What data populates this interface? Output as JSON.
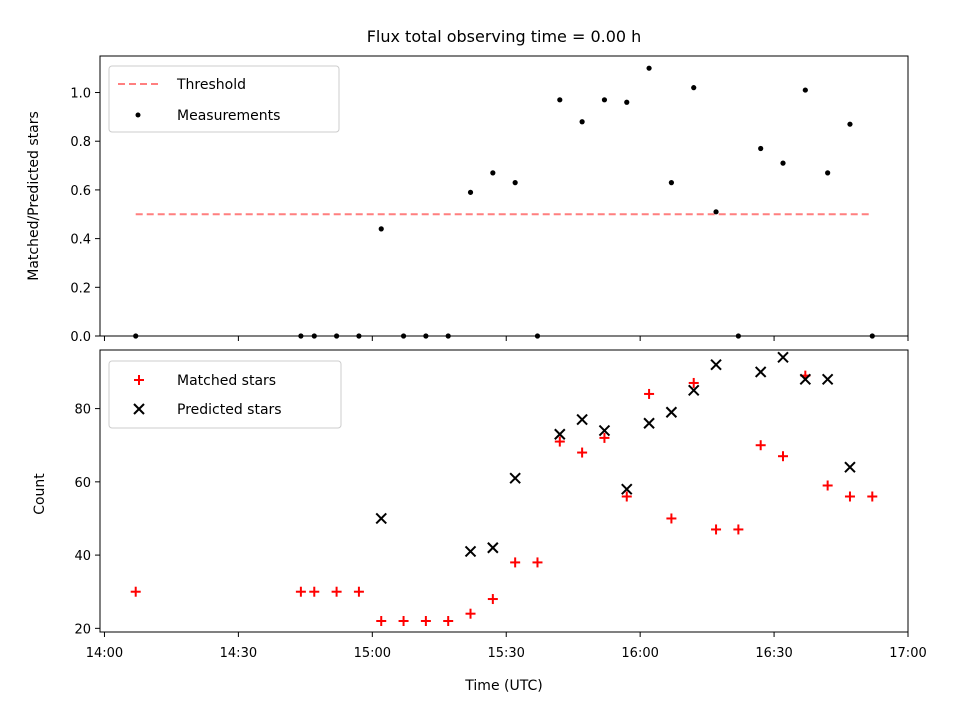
{
  "chart_data": [
    {
      "type": "scatter",
      "title": "Flux total observing time = 0.00 h",
      "xlabel": "",
      "ylabel": "Matched/Predicted stars",
      "xlim": [
        "13:59",
        "17:00"
      ],
      "ylim": [
        0,
        1.15
      ],
      "yticks": [
        "0.0",
        "0.2",
        "0.4",
        "0.6",
        "0.8",
        "1.0"
      ],
      "legend_position": "top-left",
      "grid": false,
      "series": [
        {
          "name": "Threshold",
          "kind": "dashed-line",
          "color": "#ff7f7f",
          "x": [
            "14:07",
            "16:52"
          ],
          "y": [
            0.5,
            0.5
          ]
        },
        {
          "name": "Measurements",
          "kind": "dot",
          "color": "#000000",
          "x": [
            "14:07",
            "14:44",
            "14:47",
            "14:52",
            "14:57",
            "15:02",
            "15:07",
            "15:12",
            "15:17",
            "15:22",
            "15:27",
            "15:32",
            "15:37",
            "15:42",
            "15:47",
            "15:52",
            "15:57",
            "16:02",
            "16:07",
            "16:12",
            "16:17",
            "16:22",
            "16:27",
            "16:32",
            "16:37",
            "16:42",
            "16:47",
            "16:52"
          ],
          "y": [
            0.0,
            0.0,
            0.0,
            0.0,
            0.0,
            0.44,
            0.0,
            0.0,
            0.0,
            0.59,
            0.67,
            0.63,
            0.0,
            0.97,
            0.88,
            0.97,
            0.96,
            1.1,
            0.63,
            1.02,
            0.51,
            0.0,
            0.77,
            0.71,
            1.01,
            0.67,
            0.87,
            0.0
          ]
        }
      ]
    },
    {
      "type": "scatter",
      "title": "",
      "xlabel": "Time (UTC)",
      "ylabel": "Count",
      "xlim": [
        "13:59",
        "17:00"
      ],
      "ylim": [
        19,
        96
      ],
      "xticks": [
        "14:00",
        "14:30",
        "15:00",
        "15:30",
        "16:00",
        "16:30",
        "17:00"
      ],
      "yticks": [
        "20",
        "40",
        "60",
        "80"
      ],
      "legend_position": "top-left",
      "grid": false,
      "series": [
        {
          "name": "Matched stars",
          "marker": "plus",
          "color": "#ff0000",
          "x": [
            "14:07",
            "14:44",
            "14:47",
            "14:52",
            "14:57",
            "15:02",
            "15:07",
            "15:12",
            "15:17",
            "15:22",
            "15:27",
            "15:32",
            "15:37",
            "15:42",
            "15:47",
            "15:52",
            "15:57",
            "16:02",
            "16:07",
            "16:12",
            "16:17",
            "16:22",
            "16:27",
            "16:32",
            "16:37",
            "16:42",
            "16:47",
            "16:52"
          ],
          "y": [
            30,
            30,
            30,
            30,
            30,
            22,
            22,
            22,
            22,
            24,
            28,
            38,
            38,
            71,
            68,
            72,
            56,
            84,
            50,
            87,
            47,
            47,
            70,
            67,
            89,
            59,
            56,
            56
          ]
        },
        {
          "name": "Predicted stars",
          "marker": "x",
          "color": "#000000",
          "x": [
            "15:02",
            "15:22",
            "15:27",
            "15:32",
            "15:42",
            "15:47",
            "15:52",
            "15:57",
            "16:02",
            "16:07",
            "16:12",
            "16:17",
            "16:27",
            "16:32",
            "16:37",
            "16:42",
            "16:47"
          ],
          "y": [
            50,
            41,
            42,
            61,
            73,
            77,
            74,
            58,
            76,
            79,
            85,
            92,
            90,
            94,
            88,
            88,
            64
          ]
        }
      ]
    }
  ]
}
